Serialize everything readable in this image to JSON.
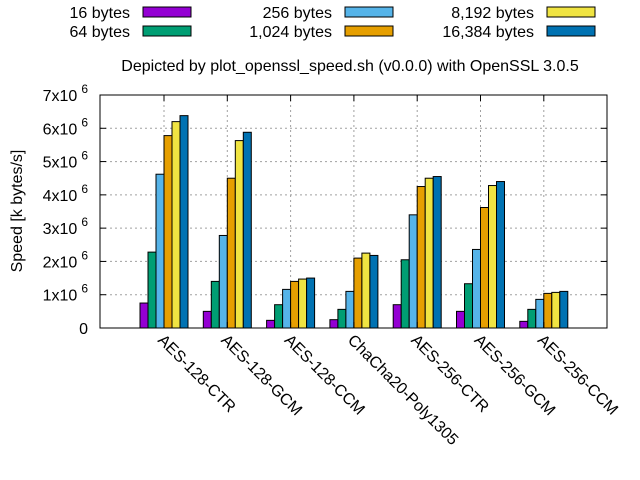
{
  "chart_data": {
    "type": "bar",
    "subtitle": "Depicted by plot_openssl_speed.sh (v0.0.0) with OpenSSL 3.0.5",
    "ylabel": "Speed [k bytes/s]",
    "xlabel": "",
    "ylim": [
      0,
      7000000
    ],
    "grid": true,
    "legend_position": "top",
    "y_ticks": [
      {
        "value": 0,
        "mant": "0",
        "exp": ""
      },
      {
        "value": 1000000,
        "mant": "1x10",
        "exp": "6"
      },
      {
        "value": 2000000,
        "mant": "2x10",
        "exp": "6"
      },
      {
        "value": 3000000,
        "mant": "3x10",
        "exp": "6"
      },
      {
        "value": 4000000,
        "mant": "4x10",
        "exp": "6"
      },
      {
        "value": 5000000,
        "mant": "5x10",
        "exp": "6"
      },
      {
        "value": 6000000,
        "mant": "6x10",
        "exp": "6"
      },
      {
        "value": 7000000,
        "mant": "7x10",
        "exp": "6"
      }
    ],
    "categories": [
      "AES-128-CTR",
      "AES-128-GCM",
      "AES-128-CCM",
      "ChaCha20-Poly1305",
      "AES-256-CTR",
      "AES-256-GCM",
      "AES-256-CCM"
    ],
    "series": [
      {
        "name": "16 bytes",
        "color": "#9400d3",
        "values": [
          750000,
          500000,
          230000,
          250000,
          700000,
          500000,
          200000
        ]
      },
      {
        "name": "64 bytes",
        "color": "#009e73",
        "values": [
          2280000,
          1400000,
          700000,
          560000,
          2050000,
          1330000,
          560000
        ]
      },
      {
        "name": "256 bytes",
        "color": "#56b4e9",
        "values": [
          4620000,
          2780000,
          1160000,
          1100000,
          3400000,
          2360000,
          860000
        ]
      },
      {
        "name": "1,024 bytes",
        "color": "#e69f00",
        "values": [
          5780000,
          4500000,
          1400000,
          2100000,
          4250000,
          3620000,
          1040000
        ]
      },
      {
        "name": "8,192 bytes",
        "color": "#f0e442",
        "values": [
          6200000,
          5630000,
          1470000,
          2250000,
          4500000,
          4280000,
          1070000
        ]
      },
      {
        "name": "16,384 bytes",
        "color": "#0072b2",
        "values": [
          6380000,
          5880000,
          1500000,
          2180000,
          4550000,
          4400000,
          1100000
        ]
      }
    ]
  }
}
